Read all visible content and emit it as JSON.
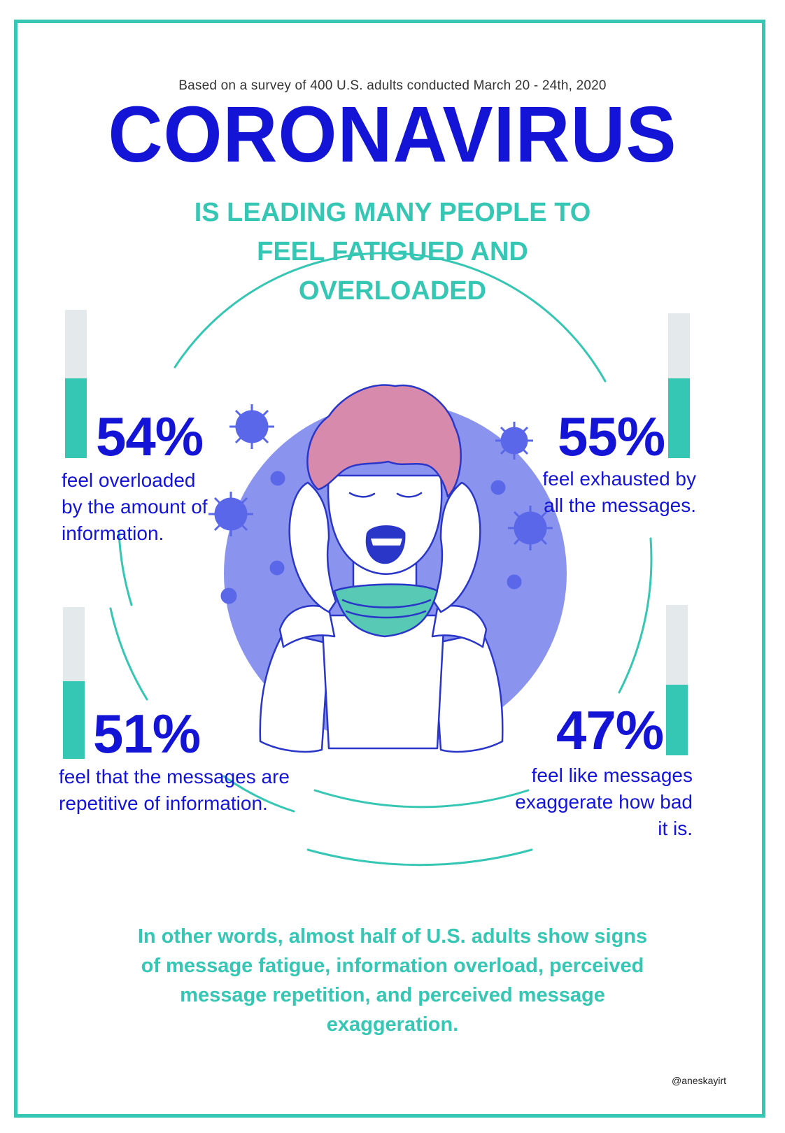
{
  "survey_note": "Based on a survey of 400 U.S. adults conducted March 20 - 24th, 2020",
  "title": "CORONAVIRUS",
  "headline": "IS LEADING MANY PEOPLE TO FEEL FATIGUED AND OVERLOADED",
  "stats": [
    {
      "percent": "54%",
      "value": 54,
      "text": "feel overloaded by the amount of information."
    },
    {
      "percent": "55%",
      "value": 55,
      "text": "feel exhausted by all the messages."
    },
    {
      "percent": "51%",
      "value": 51,
      "text": "feel that the messages are repetitive of information."
    },
    {
      "percent": "47%",
      "value": 47,
      "text": "feel like messages exaggerate how bad it is."
    }
  ],
  "summary": "In other words, almost half of U.S. adults show signs of message fatigue, information overload, perceived message repetition, and perceived message exaggeration.",
  "credit": "@aneskayirt",
  "colors": {
    "blue": "#1414d6",
    "teal": "#36c6b4",
    "circle": "#8a94ee",
    "bar_empty": "#e4e9ec"
  }
}
